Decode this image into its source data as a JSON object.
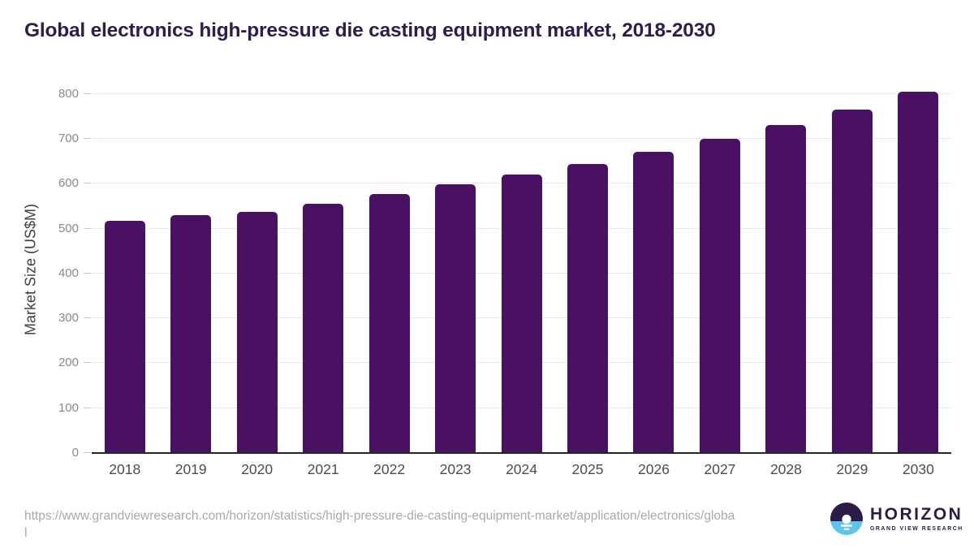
{
  "header": {
    "title": "Global electronics high-pressure die casting equipment market, 2018-2030",
    "title_color": "#2f1c4e"
  },
  "chart_data": {
    "type": "bar",
    "title": "Global electronics high-pressure die casting equipment market, 2018-2030",
    "categories": [
      "2018",
      "2019",
      "2020",
      "2021",
      "2022",
      "2023",
      "2024",
      "2025",
      "2026",
      "2027",
      "2028",
      "2029",
      "2030"
    ],
    "values": [
      518,
      530,
      537,
      556,
      578,
      599,
      621,
      645,
      671,
      700,
      731,
      766,
      806
    ],
    "xlabel": "",
    "ylabel": "Market Size (US$M)",
    "ylim": [
      0,
      800
    ],
    "y_ticks": [
      0,
      100,
      200,
      300,
      400,
      500,
      600,
      700,
      800
    ],
    "grid": "horizontal-light",
    "legend": "none",
    "bar_color": "#4a1162"
  },
  "footer": {
    "url_lines": [
      "https://www.grandviewresearch.com/horizon/statistics/high-pressure-die-casting-equipment-market/application/electronics/globa",
      "l"
    ],
    "logo": {
      "name": "HORIZON",
      "tagline": "GRAND VIEW RESEARCH",
      "purple": "#2e1a47",
      "blue": "#5bc6ea",
      "white": "#ffffff"
    }
  }
}
